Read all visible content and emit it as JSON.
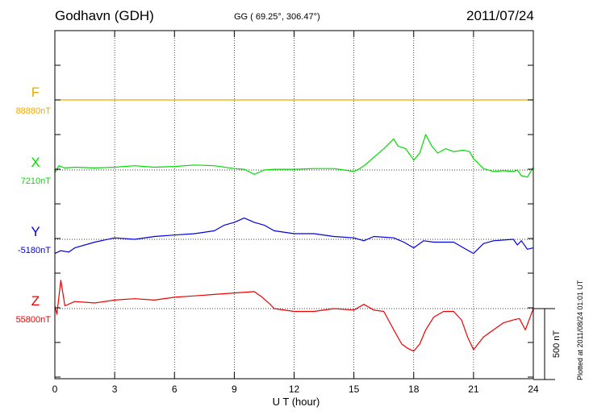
{
  "header": {
    "station": "Godhavn (GDH)",
    "coords": "GG ( 69.25°, 306.47°)",
    "date": "2011/07/24"
  },
  "footer": {
    "plotted": "Plotted at 2011/08/24 01:01 UT"
  },
  "chart_data": {
    "type": "line",
    "xlabel": "U T (hour)",
    "xlim": [
      0,
      24
    ],
    "xticks": [
      0,
      3,
      6,
      9,
      12,
      15,
      18,
      21,
      24
    ],
    "grid": true,
    "scale_bar": {
      "label": "500 nT",
      "value": 500
    },
    "series": [
      {
        "name": "F",
        "baseline_label": "88880nT",
        "baseline": 88880,
        "color": "#f0a800",
        "x": [
          0,
          24
        ],
        "y": [
          0,
          0
        ]
      },
      {
        "name": "X",
        "baseline_label": "7210nT",
        "baseline": 7210,
        "color": "#00dd00",
        "x": [
          0,
          0.2,
          0.5,
          1,
          2,
          3,
          4,
          5,
          6,
          7,
          8,
          9,
          9.5,
          10,
          10.5,
          11,
          12,
          13,
          14,
          14.5,
          15,
          15.3,
          15.6,
          16,
          16.5,
          17,
          17.2,
          17.6,
          18,
          18.3,
          18.6,
          18.9,
          19.2,
          19.6,
          20,
          20.5,
          20.8,
          21,
          21.5,
          22,
          22.5,
          23,
          23.2,
          23.4,
          23.7,
          24
        ],
        "y": [
          -20,
          30,
          15,
          20,
          15,
          20,
          30,
          20,
          25,
          35,
          30,
          10,
          5,
          -30,
          0,
          5,
          5,
          10,
          10,
          0,
          -10,
          10,
          40,
          90,
          150,
          220,
          170,
          150,
          70,
          120,
          250,
          170,
          120,
          150,
          130,
          140,
          130,
          80,
          10,
          -10,
          -5,
          -10,
          0,
          -40,
          -50,
          20
        ]
      },
      {
        "name": "Y",
        "baseline_label": "-5180nT",
        "baseline": -5180,
        "color": "#0000dd",
        "x": [
          0,
          0.3,
          0.7,
          1,
          2,
          3,
          4,
          5,
          6,
          7,
          8,
          8.5,
          9,
          9.5,
          10,
          10.5,
          11,
          12,
          13,
          14,
          15,
          15.5,
          16,
          17,
          17.5,
          18,
          18.5,
          19,
          20,
          20.5,
          21,
          21.5,
          22,
          23,
          23.2,
          23.4,
          23.7,
          24
        ],
        "y": [
          -100,
          -80,
          -90,
          -60,
          -20,
          10,
          0,
          20,
          30,
          40,
          60,
          100,
          120,
          150,
          120,
          100,
          60,
          40,
          40,
          20,
          10,
          -10,
          20,
          10,
          -20,
          -60,
          -10,
          -20,
          -20,
          -60,
          -100,
          -30,
          -10,
          0,
          -40,
          -10,
          -70,
          -60
        ]
      },
      {
        "name": "Z",
        "baseline_label": "55800nT",
        "baseline": 55800,
        "color": "#ee0000",
        "x": [
          0,
          0.1,
          0.3,
          0.5,
          1,
          2,
          3,
          4,
          5,
          6,
          7,
          8,
          9,
          10,
          10.4,
          10.8,
          11,
          12,
          13,
          14,
          15,
          15.5,
          16,
          16.5,
          17,
          17.4,
          17.7,
          18,
          18.3,
          18.6,
          19,
          19.5,
          20,
          20.4,
          20.7,
          21,
          21.5,
          22,
          22.5,
          23,
          23.3,
          23.6,
          24
        ],
        "y": [
          20,
          -40,
          200,
          20,
          50,
          40,
          60,
          70,
          60,
          80,
          90,
          100,
          110,
          120,
          80,
          30,
          0,
          -20,
          -20,
          0,
          -10,
          30,
          -10,
          -20,
          -150,
          -250,
          -280,
          -300,
          -250,
          -150,
          -60,
          -20,
          -20,
          -80,
          -200,
          -290,
          -200,
          -150,
          -100,
          -80,
          -70,
          -150,
          0
        ]
      }
    ]
  }
}
